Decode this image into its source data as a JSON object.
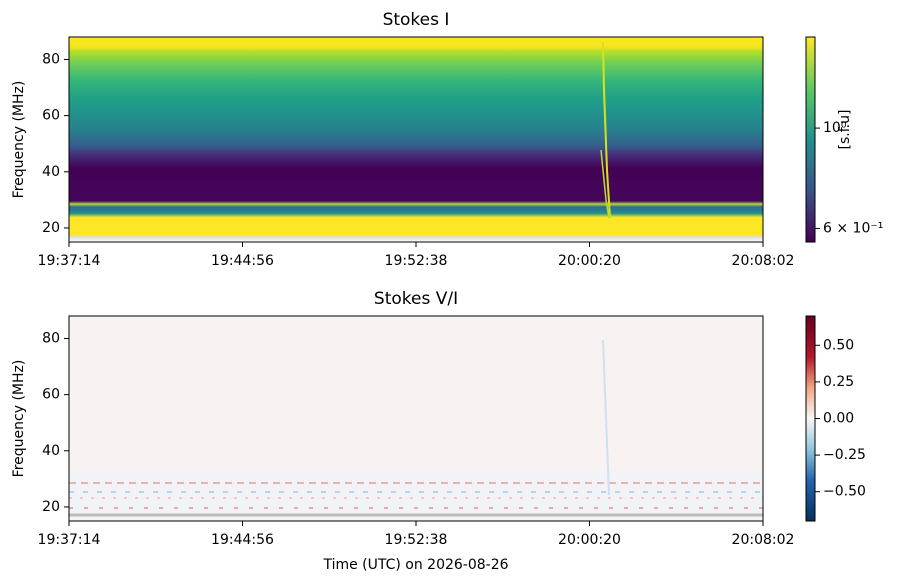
{
  "chart_data": [
    {
      "type": "heatmap",
      "title": "Stokes I",
      "ylabel": "Frequency (MHz)",
      "xlim": [
        "19:37:14",
        "20:08:02"
      ],
      "xticks": [
        "19:37:14",
        "19:44:56",
        "19:52:38",
        "20:00:20",
        "20:08:02"
      ],
      "ylim": [
        15,
        88
      ],
      "yticks": [
        20,
        40,
        60,
        80
      ],
      "colorbar": {
        "label": "[s.f.u]",
        "scale": "log",
        "lim": [
          0.56,
          1.59
        ],
        "ticks": [
          {
            "value": 1,
            "label": "10⁰"
          },
          {
            "value": 0.6,
            "label": "6 × 10⁻¹"
          }
        ]
      }
    },
    {
      "type": "heatmap",
      "title": "Stokes V/I",
      "ylabel": "Frequency (MHz)",
      "xlabel": "Time (UTC) on 2026-08-26",
      "xlim": [
        "19:37:14",
        "20:08:02"
      ],
      "xticks": [
        "19:37:14",
        "19:44:56",
        "19:52:38",
        "20:00:20",
        "20:08:02"
      ],
      "ylim": [
        15,
        88
      ],
      "yticks": [
        20,
        40,
        60,
        80
      ],
      "colorbar": {
        "scale": "linear",
        "lim": [
          -0.7,
          0.7
        ],
        "ticks": [
          {
            "value": 0.5,
            "label": "0.50"
          },
          {
            "value": 0.25,
            "label": "0.25"
          },
          {
            "value": 0,
            "label": "0.00"
          },
          {
            "value": -0.25,
            "label": "−0.25"
          },
          {
            "value": -0.5,
            "label": "−0.50"
          }
        ]
      }
    }
  ]
}
